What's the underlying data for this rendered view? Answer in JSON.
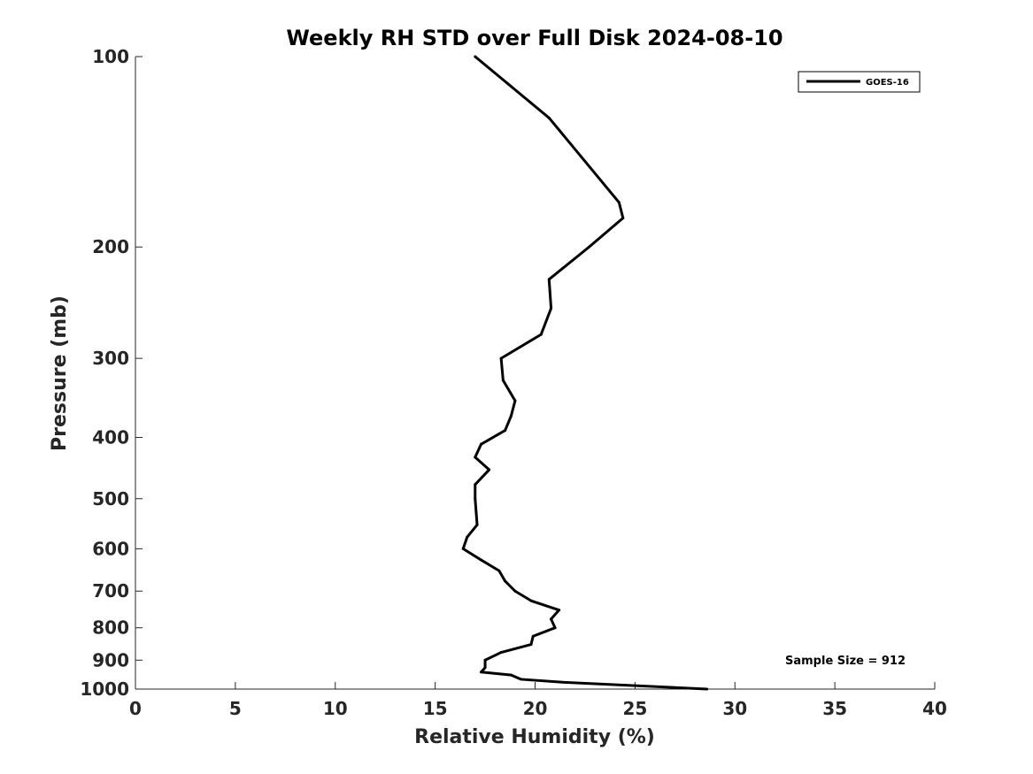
{
  "chart_data": {
    "type": "line",
    "title": "Weekly RH STD over Full Disk 2024-08-10",
    "xlabel": "Relative Humidity (%)",
    "ylabel": "Pressure (mb)",
    "xlim": [
      0,
      40
    ],
    "ylim": [
      100,
      1000
    ],
    "yscale": "log",
    "y_reversed": true,
    "grid": false,
    "legend_position": "top-right",
    "xticks": [
      0,
      5,
      10,
      15,
      20,
      25,
      30,
      35,
      40
    ],
    "xtick_labels": [
      "0",
      "5",
      "10",
      "15",
      "20",
      "25",
      "30",
      "35",
      "40"
    ],
    "yticks": [
      100,
      200,
      300,
      400,
      500,
      600,
      700,
      800,
      900,
      1000
    ],
    "ytick_labels": [
      "100",
      "200",
      "300",
      "400",
      "500",
      "600",
      "700",
      "800",
      "900",
      "1000"
    ],
    "annotation": "Sample Size = 912",
    "series": [
      {
        "name": "GOES-16",
        "color": "#000000",
        "points": [
          {
            "x": 17.0,
            "y": 100
          },
          {
            "x": 20.7,
            "y": 125
          },
          {
            "x": 24.2,
            "y": 170
          },
          {
            "x": 24.4,
            "y": 180
          },
          {
            "x": 22.7,
            "y": 200
          },
          {
            "x": 20.7,
            "y": 225
          },
          {
            "x": 20.8,
            "y": 250
          },
          {
            "x": 20.3,
            "y": 275
          },
          {
            "x": 18.3,
            "y": 300
          },
          {
            "x": 18.4,
            "y": 325
          },
          {
            "x": 19.0,
            "y": 350
          },
          {
            "x": 18.8,
            "y": 370
          },
          {
            "x": 18.5,
            "y": 390
          },
          {
            "x": 17.3,
            "y": 410
          },
          {
            "x": 17.0,
            "y": 430
          },
          {
            "x": 17.7,
            "y": 450
          },
          {
            "x": 17.0,
            "y": 475
          },
          {
            "x": 17.0,
            "y": 500
          },
          {
            "x": 17.05,
            "y": 525
          },
          {
            "x": 17.1,
            "y": 550
          },
          {
            "x": 16.6,
            "y": 575
          },
          {
            "x": 16.4,
            "y": 600
          },
          {
            "x": 17.3,
            "y": 625
          },
          {
            "x": 18.2,
            "y": 650
          },
          {
            "x": 18.5,
            "y": 675
          },
          {
            "x": 19.0,
            "y": 700
          },
          {
            "x": 19.8,
            "y": 725
          },
          {
            "x": 21.2,
            "y": 750
          },
          {
            "x": 20.8,
            "y": 775
          },
          {
            "x": 21.0,
            "y": 800
          },
          {
            "x": 19.9,
            "y": 825
          },
          {
            "x": 19.8,
            "y": 850
          },
          {
            "x": 18.3,
            "y": 875
          },
          {
            "x": 17.5,
            "y": 900
          },
          {
            "x": 17.5,
            "y": 925
          },
          {
            "x": 17.3,
            "y": 940
          },
          {
            "x": 18.8,
            "y": 950
          },
          {
            "x": 19.3,
            "y": 965
          },
          {
            "x": 21.3,
            "y": 975
          },
          {
            "x": 28.6,
            "y": 1000
          }
        ]
      }
    ]
  }
}
